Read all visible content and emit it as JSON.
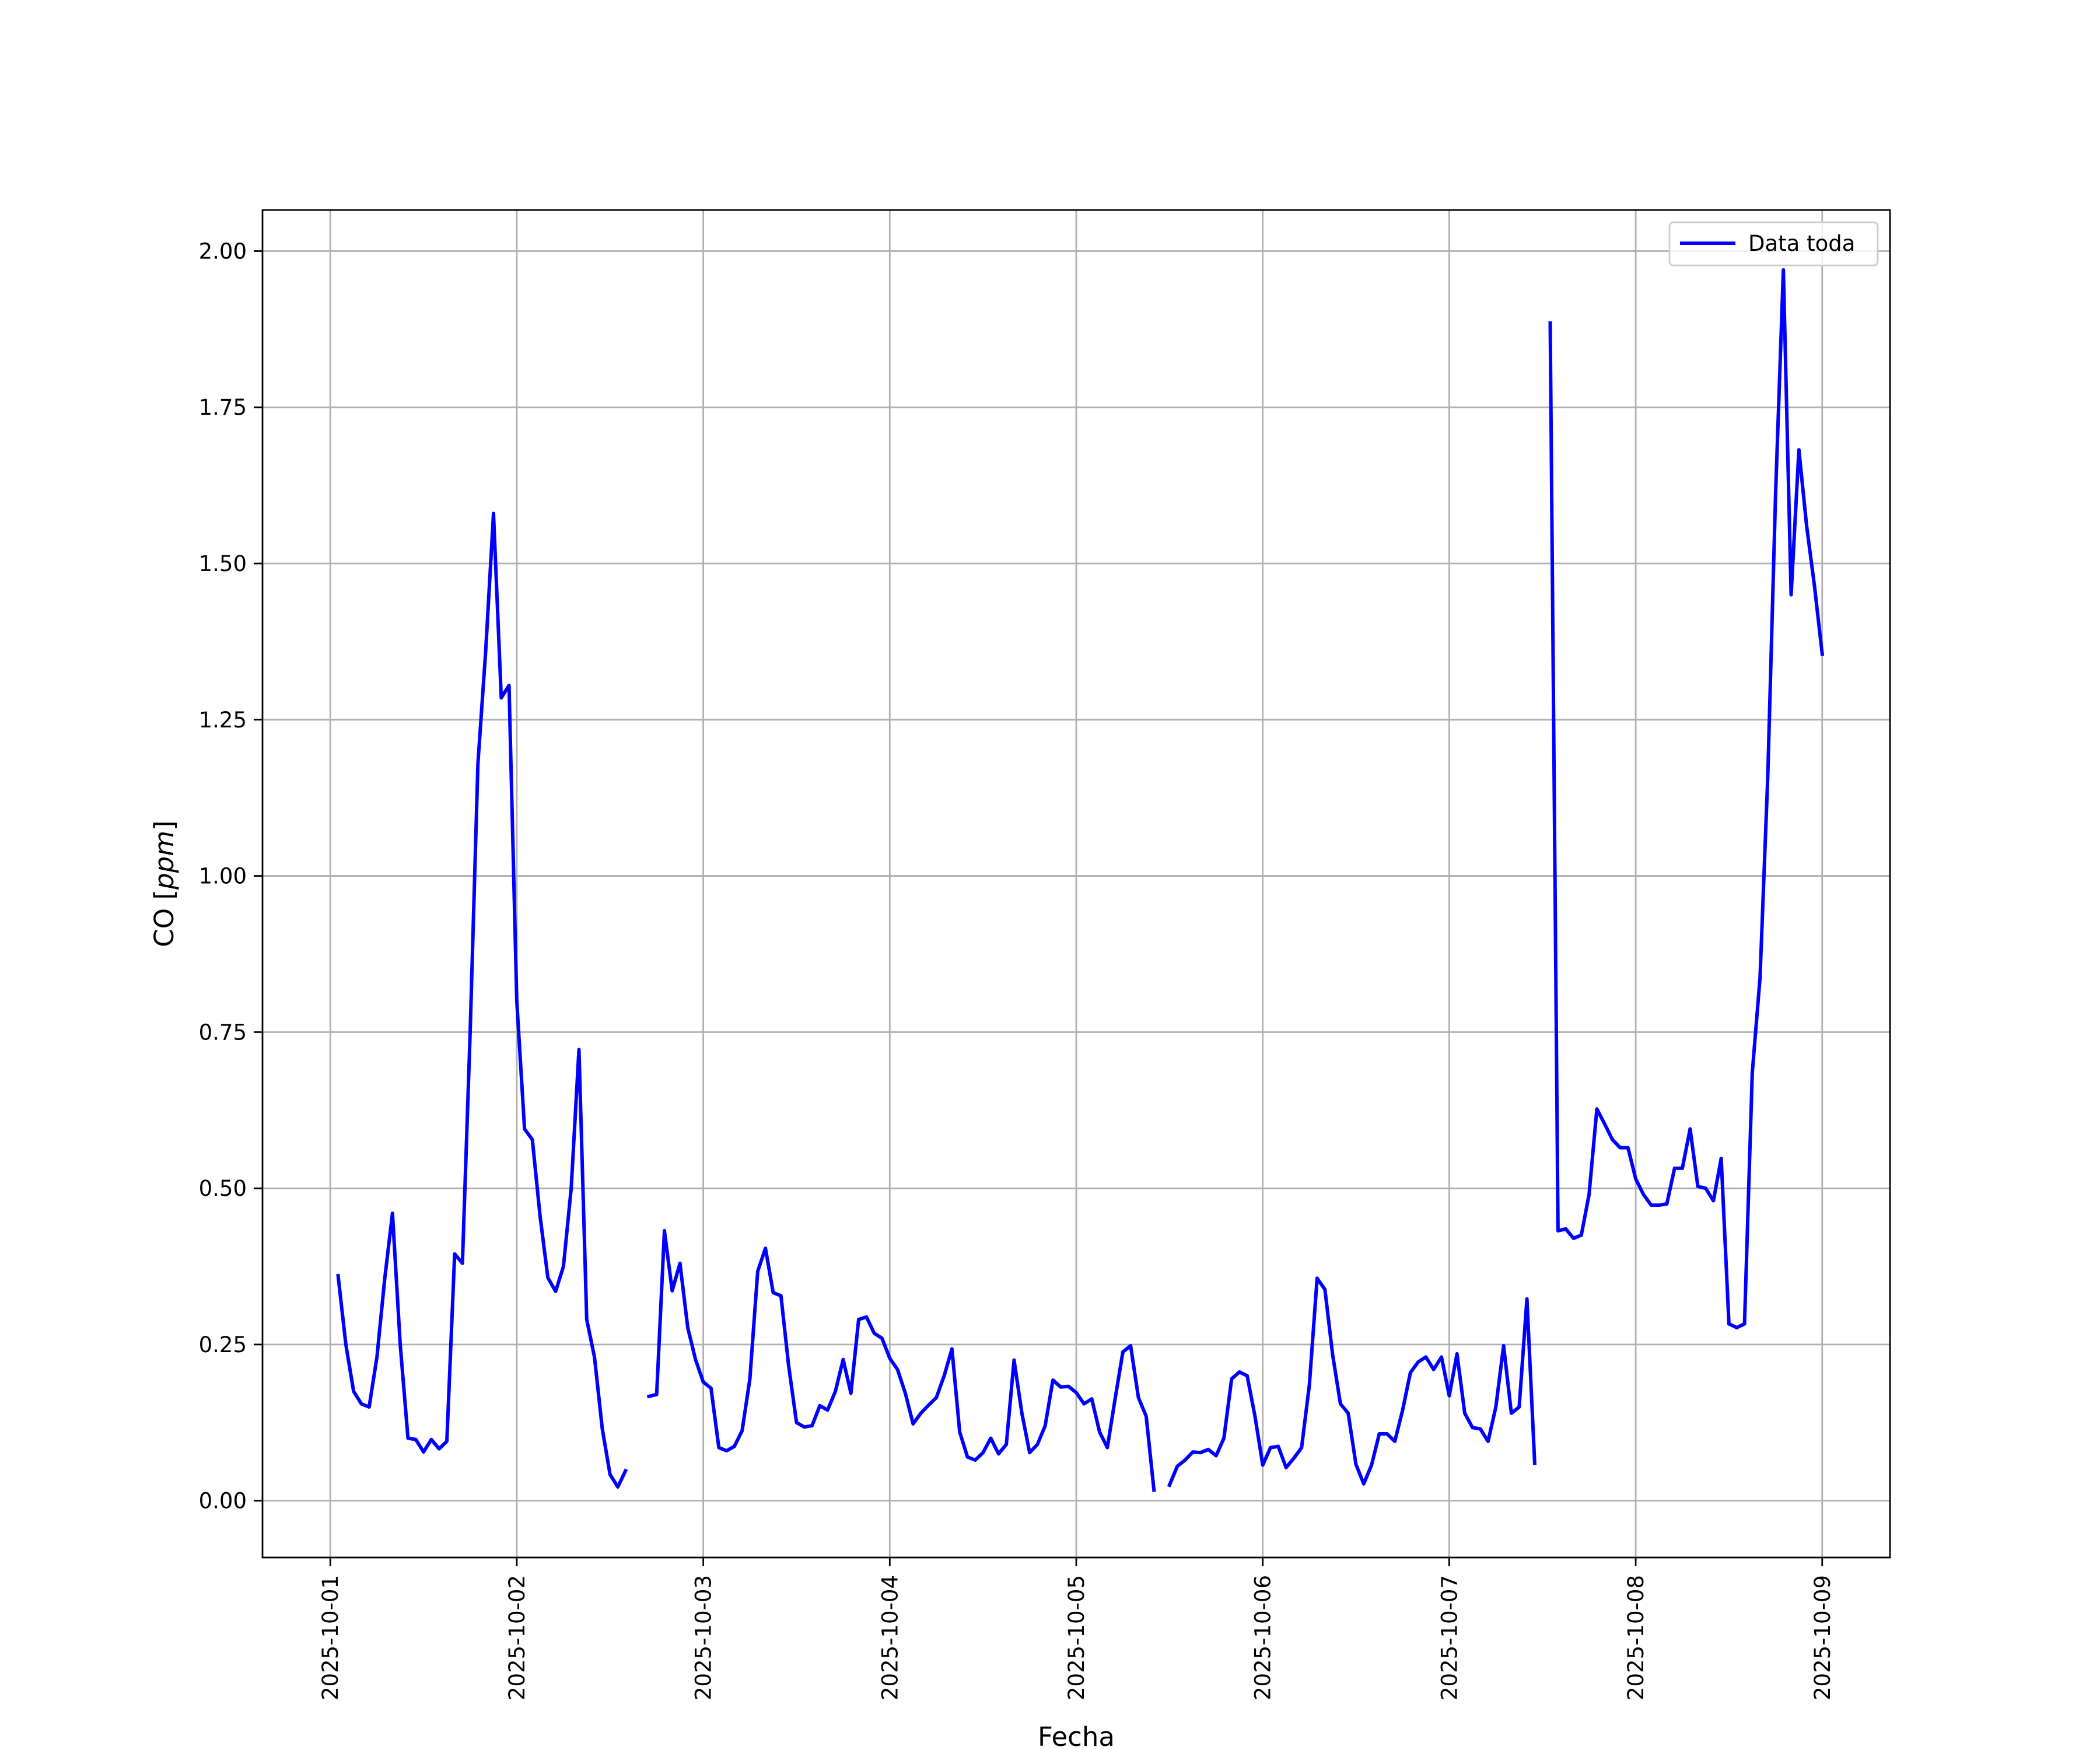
{
  "chart_data": {
    "type": "line",
    "title": "",
    "xlabel": "Fecha",
    "ylabel": "CO [ppm]",
    "ylabel_parts": [
      "CO [",
      "ppm",
      "]"
    ],
    "xlim": [
      "2025-10-01 00:00",
      "2025-10-09 00:00"
    ],
    "ylim": [
      0.0,
      2.0
    ],
    "x_ticks": [
      "2025-10-01",
      "2025-10-02",
      "2025-10-03",
      "2025-10-04",
      "2025-10-05",
      "2025-10-06",
      "2025-10-07",
      "2025-10-08",
      "2025-10-09"
    ],
    "y_ticks": [
      0.0,
      0.25,
      0.5,
      0.75,
      1.0,
      1.25,
      1.5,
      1.75,
      2.0
    ],
    "y_tick_labels": [
      "0.00",
      "0.25",
      "0.50",
      "0.75",
      "1.00",
      "1.25",
      "1.50",
      "1.75",
      "2.00"
    ],
    "grid": true,
    "legend_position": "top-right",
    "series": [
      {
        "name": "Data toda",
        "color": "#0000ff",
        "segments": [
          [
            [
              "2025-10-01 01:00",
              0.36
            ],
            [
              "2025-10-01 02:00",
              0.25
            ],
            [
              "2025-10-01 03:00",
              0.175
            ],
            [
              "2025-10-01 04:00",
              0.155
            ],
            [
              "2025-10-01 05:00",
              0.15
            ],
            [
              "2025-10-01 06:00",
              0.23
            ],
            [
              "2025-10-01 07:00",
              0.355
            ],
            [
              "2025-10-01 08:00",
              0.46
            ],
            [
              "2025-10-01 09:00",
              0.25
            ],
            [
              "2025-10-01 10:00",
              0.1
            ],
            [
              "2025-10-01 11:00",
              0.098
            ],
            [
              "2025-10-01 12:00",
              0.078
            ],
            [
              "2025-10-01 13:00",
              0.098
            ],
            [
              "2025-10-01 14:00",
              0.083
            ],
            [
              "2025-10-01 15:00",
              0.095
            ],
            [
              "2025-10-01 16:00",
              0.395
            ],
            [
              "2025-10-01 17:00",
              0.38
            ],
            [
              "2025-10-01 18:00",
              0.75
            ],
            [
              "2025-10-01 19:00",
              1.18
            ],
            [
              "2025-10-01 20:00",
              1.36
            ],
            [
              "2025-10-01 21:00",
              1.58
            ],
            [
              "2025-10-01 22:00",
              1.285
            ],
            [
              "2025-10-01 23:00",
              1.305
            ],
            [
              "2025-10-02 00:00",
              0.8
            ],
            [
              "2025-10-02 01:00",
              0.595
            ],
            [
              "2025-10-02 02:00",
              0.578
            ],
            [
              "2025-10-02 03:00",
              0.455
            ],
            [
              "2025-10-02 04:00",
              0.357
            ],
            [
              "2025-10-02 05:00",
              0.335
            ],
            [
              "2025-10-02 06:00",
              0.375
            ],
            [
              "2025-10-02 07:00",
              0.5
            ],
            [
              "2025-10-02 08:00",
              0.722
            ],
            [
              "2025-10-02 09:00",
              0.29
            ],
            [
              "2025-10-02 10:00",
              0.23
            ],
            [
              "2025-10-02 11:00",
              0.115
            ],
            [
              "2025-10-02 12:00",
              0.042
            ],
            [
              "2025-10-02 13:00",
              0.022
            ],
            [
              "2025-10-02 14:00",
              0.048
            ]
          ],
          [
            [
              "2025-10-02 17:00",
              0.167
            ],
            [
              "2025-10-02 18:00",
              0.17
            ],
            [
              "2025-10-02 19:00",
              0.432
            ],
            [
              "2025-10-02 20:00",
              0.336
            ],
            [
              "2025-10-02 21:00",
              0.38
            ],
            [
              "2025-10-02 22:00",
              0.277
            ],
            [
              "2025-10-02 23:00",
              0.226
            ],
            [
              "2025-10-03 00:00",
              0.19
            ],
            [
              "2025-10-03 01:00",
              0.18
            ],
            [
              "2025-10-03 02:00",
              0.085
            ],
            [
              "2025-10-03 03:00",
              0.08
            ],
            [
              "2025-10-03 04:00",
              0.087
            ],
            [
              "2025-10-03 05:00",
              0.112
            ],
            [
              "2025-10-03 06:00",
              0.195
            ],
            [
              "2025-10-03 07:00",
              0.367
            ],
            [
              "2025-10-03 08:00",
              0.404
            ],
            [
              "2025-10-03 09:00",
              0.333
            ],
            [
              "2025-10-03 10:00",
              0.328
            ],
            [
              "2025-10-03 11:00",
              0.215
            ],
            [
              "2025-10-03 12:00",
              0.125
            ],
            [
              "2025-10-03 13:00",
              0.118
            ],
            [
              "2025-10-03 14:00",
              0.12
            ],
            [
              "2025-10-03 15:00",
              0.152
            ],
            [
              "2025-10-03 16:00",
              0.145
            ],
            [
              "2025-10-03 17:00",
              0.175
            ],
            [
              "2025-10-03 18:00",
              0.226
            ],
            [
              "2025-10-03 19:00",
              0.172
            ],
            [
              "2025-10-03 20:00",
              0.29
            ],
            [
              "2025-10-03 21:00",
              0.294
            ],
            [
              "2025-10-03 22:00",
              0.268
            ],
            [
              "2025-10-03 23:00",
              0.26
            ],
            [
              "2025-10-04 00:00",
              0.228
            ],
            [
              "2025-10-04 01:00",
              0.21
            ],
            [
              "2025-10-04 02:00",
              0.172
            ],
            [
              "2025-10-04 03:00",
              0.123
            ],
            [
              "2025-10-04 04:00",
              0.14
            ],
            [
              "2025-10-04 05:00",
              0.153
            ],
            [
              "2025-10-04 06:00",
              0.165
            ],
            [
              "2025-10-04 07:00",
              0.2
            ],
            [
              "2025-10-04 08:00",
              0.243
            ],
            [
              "2025-10-04 09:00",
              0.11
            ],
            [
              "2025-10-04 10:00",
              0.07
            ],
            [
              "2025-10-04 11:00",
              0.065
            ],
            [
              "2025-10-04 12:00",
              0.077
            ],
            [
              "2025-10-04 13:00",
              0.1
            ],
            [
              "2025-10-04 14:00",
              0.075
            ],
            [
              "2025-10-04 15:00",
              0.09
            ],
            [
              "2025-10-04 16:00",
              0.225
            ],
            [
              "2025-10-04 17:00",
              0.14
            ],
            [
              "2025-10-04 18:00",
              0.077
            ],
            [
              "2025-10-04 19:00",
              0.09
            ],
            [
              "2025-10-04 20:00",
              0.12
            ],
            [
              "2025-10-04 21:00",
              0.193
            ],
            [
              "2025-10-04 22:00",
              0.182
            ],
            [
              "2025-10-04 23:00",
              0.183
            ],
            [
              "2025-10-05 00:00",
              0.173
            ],
            [
              "2025-10-05 01:00",
              0.155
            ],
            [
              "2025-10-05 02:00",
              0.163
            ],
            [
              "2025-10-05 03:00",
              0.11
            ],
            [
              "2025-10-05 04:00",
              0.085
            ],
            [
              "2025-10-05 05:00",
              0.163
            ],
            [
              "2025-10-05 06:00",
              0.238
            ],
            [
              "2025-10-05 07:00",
              0.248
            ],
            [
              "2025-10-05 08:00",
              0.165
            ],
            [
              "2025-10-05 09:00",
              0.135
            ],
            [
              "2025-10-05 10:00",
              0.017
            ]
          ],
          [
            [
              "2025-10-05 12:00",
              0.025
            ],
            [
              "2025-10-05 13:00",
              0.055
            ],
            [
              "2025-10-05 14:00",
              0.065
            ],
            [
              "2025-10-05 15:00",
              0.078
            ],
            [
              "2025-10-05 16:00",
              0.077
            ],
            [
              "2025-10-05 17:00",
              0.082
            ],
            [
              "2025-10-05 18:00",
              0.072
            ],
            [
              "2025-10-05 19:00",
              0.1
            ],
            [
              "2025-10-05 20:00",
              0.195
            ],
            [
              "2025-10-05 21:00",
              0.206
            ],
            [
              "2025-10-05 22:00",
              0.2
            ],
            [
              "2025-10-05 23:00",
              0.135
            ],
            [
              "2025-10-06 00:00",
              0.057
            ],
            [
              "2025-10-06 01:00",
              0.085
            ],
            [
              "2025-10-06 02:00",
              0.087
            ],
            [
              "2025-10-06 03:00",
              0.053
            ],
            [
              "2025-10-06 04:00",
              0.068
            ],
            [
              "2025-10-06 05:00",
              0.085
            ],
            [
              "2025-10-06 06:00",
              0.185
            ],
            [
              "2025-10-06 07:00",
              0.356
            ],
            [
              "2025-10-06 08:00",
              0.338
            ],
            [
              "2025-10-06 09:00",
              0.233
            ],
            [
              "2025-10-06 10:00",
              0.155
            ],
            [
              "2025-10-06 11:00",
              0.14
            ],
            [
              "2025-10-06 12:00",
              0.058
            ],
            [
              "2025-10-06 13:00",
              0.027
            ],
            [
              "2025-10-06 14:00",
              0.057
            ],
            [
              "2025-10-06 15:00",
              0.107
            ],
            [
              "2025-10-06 16:00",
              0.107
            ],
            [
              "2025-10-06 17:00",
              0.095
            ],
            [
              "2025-10-06 18:00",
              0.145
            ],
            [
              "2025-10-06 19:00",
              0.205
            ],
            [
              "2025-10-06 20:00",
              0.222
            ],
            [
              "2025-10-06 21:00",
              0.23
            ],
            [
              "2025-10-06 22:00",
              0.21
            ],
            [
              "2025-10-06 23:00",
              0.23
            ],
            [
              "2025-10-07 00:00",
              0.168
            ],
            [
              "2025-10-07 01:00",
              0.235
            ],
            [
              "2025-10-07 02:00",
              0.14
            ],
            [
              "2025-10-07 03:00",
              0.117
            ],
            [
              "2025-10-07 04:00",
              0.115
            ],
            [
              "2025-10-07 05:00",
              0.095
            ],
            [
              "2025-10-07 06:00",
              0.15
            ],
            [
              "2025-10-07 07:00",
              0.248
            ],
            [
              "2025-10-07 08:00",
              0.14
            ],
            [
              "2025-10-07 09:00",
              0.15
            ],
            [
              "2025-10-07 10:00",
              0.323
            ],
            [
              "2025-10-07 11:00",
              0.06
            ]
          ],
          [
            [
              "2025-10-07 13:00",
              1.885
            ],
            [
              "2025-10-07 14:00",
              0.432
            ],
            [
              "2025-10-07 15:00",
              0.435
            ],
            [
              "2025-10-07 16:00",
              0.42
            ],
            [
              "2025-10-07 17:00",
              0.425
            ],
            [
              "2025-10-07 18:00",
              0.49
            ],
            [
              "2025-10-07 19:00",
              0.627
            ],
            [
              "2025-10-07 20:00",
              0.603
            ],
            [
              "2025-10-07 21:00",
              0.578
            ],
            [
              "2025-10-07 22:00",
              0.565
            ],
            [
              "2025-10-07 23:00",
              0.565
            ],
            [
              "2025-10-08 00:00",
              0.515
            ],
            [
              "2025-10-08 01:00",
              0.49
            ],
            [
              "2025-10-08 02:00",
              0.473
            ],
            [
              "2025-10-08 03:00",
              0.473
            ],
            [
              "2025-10-08 04:00",
              0.475
            ],
            [
              "2025-10-08 05:00",
              0.532
            ],
            [
              "2025-10-08 06:00",
              0.532
            ],
            [
              "2025-10-08 07:00",
              0.595
            ],
            [
              "2025-10-08 08:00",
              0.503
            ],
            [
              "2025-10-08 09:00",
              0.5
            ],
            [
              "2025-10-08 10:00",
              0.48
            ],
            [
              "2025-10-08 11:00",
              0.548
            ],
            [
              "2025-10-08 12:00",
              0.283
            ],
            [
              "2025-10-08 13:00",
              0.277
            ],
            [
              "2025-10-08 14:00",
              0.283
            ],
            [
              "2025-10-08 15:00",
              0.685
            ],
            [
              "2025-10-08 16:00",
              0.837
            ],
            [
              "2025-10-08 17:00",
              1.16
            ],
            [
              "2025-10-08 18:00",
              1.61
            ],
            [
              "2025-10-08 19:00",
              1.97
            ],
            [
              "2025-10-08 20:00",
              1.45
            ],
            [
              "2025-10-08 21:00",
              1.682
            ],
            [
              "2025-10-08 22:00",
              1.56
            ],
            [
              "2025-10-08 23:00",
              1.465
            ],
            [
              "2025-10-09 00:00",
              1.355
            ]
          ]
        ]
      }
    ]
  }
}
